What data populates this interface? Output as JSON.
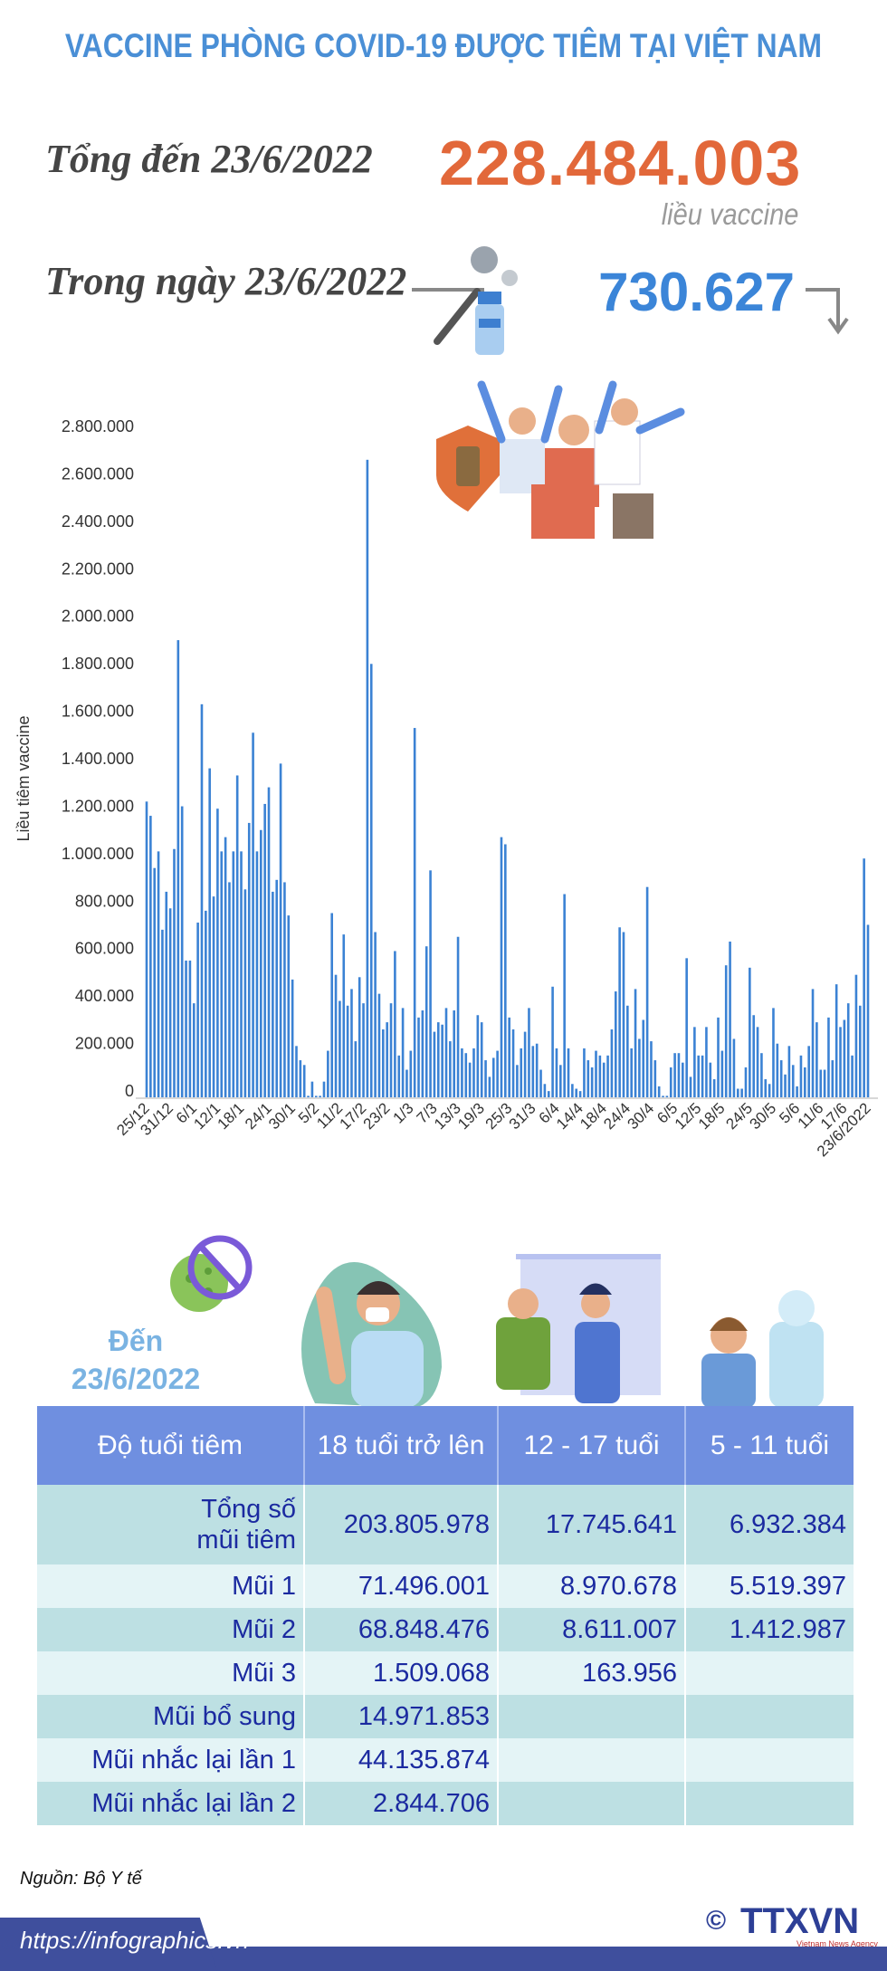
{
  "title": "VACCINE PHÒNG COVID-19 ĐƯỢC TIÊM TẠI VIỆT NAM",
  "summary": {
    "total_label": "Tổng đến 23/6/2022",
    "total_value": "228.484.003",
    "total_unit": "liều vaccine",
    "day_label": "Trong ngày 23/6/2022",
    "day_value": "730.627",
    "day_trend": "down",
    "colors": {
      "title": "#4a8fd6",
      "total": "#e2683a",
      "day": "#3b85d8"
    }
  },
  "chart_data": {
    "type": "bar",
    "title": "",
    "xlabel": "",
    "ylabel": "Liều tiêm vaccine",
    "ylim": [
      0,
      2800000
    ],
    "grid": false,
    "color": "#3b82d4",
    "yticks": [
      "0",
      "200.000",
      "400.000",
      "600.000",
      "800.000",
      "1.000.000",
      "1.200.000",
      "1.400.000",
      "1.600.000",
      "1.800.000",
      "2.000.000",
      "2.200.000",
      "2.400.000",
      "2.600.000",
      "2.800.000"
    ],
    "ytick_values": [
      0,
      200000,
      400000,
      600000,
      800000,
      1000000,
      1200000,
      1400000,
      1600000,
      1800000,
      2000000,
      2200000,
      2400000,
      2600000,
      2800000
    ],
    "xtick_labels": [
      "25/12",
      "31/12",
      "6/1",
      "12/1",
      "18/1",
      "24/1",
      "30/1",
      "5/2",
      "11/2",
      "17/2",
      "23/2",
      "1/3",
      "7/3",
      "13/3",
      "19/3",
      "25/3",
      "31/3",
      "6/4",
      "14/4",
      "18/4",
      "24/4",
      "30/4",
      "6/5",
      "12/5",
      "18/5",
      "24/5",
      "30/5",
      "5/6",
      "11/6",
      "17/6",
      "23/6/2022"
    ],
    "values": [
      1250000,
      1190000,
      970000,
      1040000,
      710000,
      870000,
      800000,
      1050000,
      1930000,
      1230000,
      580000,
      580000,
      400000,
      740000,
      1660000,
      790000,
      1390000,
      850000,
      1220000,
      1040000,
      1100000,
      910000,
      1040000,
      1360000,
      1040000,
      880000,
      1160000,
      1540000,
      1040000,
      1130000,
      1240000,
      1310000,
      870000,
      920000,
      1410000,
      910000,
      770000,
      500000,
      220000,
      160000,
      140000,
      10000,
      70000,
      10000,
      10000,
      70000,
      200000,
      780000,
      520000,
      410000,
      690000,
      390000,
      460000,
      240000,
      510000,
      400000,
      2690000,
      1830000,
      700000,
      440000,
      290000,
      320000,
      400000,
      620000,
      180000,
      380000,
      120000,
      200000,
      1560000,
      340000,
      370000,
      640000,
      960000,
      280000,
      320000,
      310000,
      380000,
      240000,
      370000,
      680000,
      210000,
      190000,
      150000,
      210000,
      350000,
      320000,
      160000,
      90000,
      170000,
      200000,
      1100000,
      1070000,
      340000,
      290000,
      140000,
      210000,
      280000,
      380000,
      220000,
      230000,
      120000,
      60000,
      30000,
      470000,
      210000,
      140000,
      860000,
      210000,
      60000,
      40000,
      30000,
      210000,
      160000,
      130000,
      200000,
      180000,
      150000,
      180000,
      290000,
      450000,
      720000,
      700000,
      390000,
      210000,
      460000,
      250000,
      330000,
      890000,
      240000,
      160000,
      50000,
      10000,
      10000,
      130000,
      190000,
      190000,
      150000,
      590000,
      90000,
      300000,
      180000,
      180000,
      300000,
      150000,
      80000,
      340000,
      200000,
      560000,
      660000,
      250000,
      40000,
      40000,
      130000,
      550000,
      350000,
      300000,
      190000,
      80000,
      60000,
      380000,
      230000,
      160000,
      100000,
      220000,
      140000,
      50000,
      180000,
      130000,
      220000,
      460000,
      320000,
      120000,
      120000,
      340000,
      160000,
      480000,
      300000,
      330000,
      400000,
      180000,
      520000,
      390000,
      1010000,
      730627
    ]
  },
  "table_section": {
    "date_label_line1": "Đến",
    "date_label_line2": "23/6/2022",
    "headers": [
      "Độ tuổi tiêm",
      "18 tuổi trở lên",
      "12 - 17 tuổi",
      "5 - 11 tuổi"
    ],
    "rows": [
      {
        "label": "Tổng số mũi tiêm",
        "values": [
          "203.805.978",
          "17.745.641",
          "6.932.384"
        ]
      },
      {
        "label": "Mũi 1",
        "values": [
          "71.496.001",
          "8.970.678",
          "5.519.397"
        ]
      },
      {
        "label": "Mũi 2",
        "values": [
          "68.848.476",
          "8.611.007",
          "1.412.987"
        ]
      },
      {
        "label": "Mũi 3",
        "values": [
          "1.509.068",
          "163.956",
          ""
        ]
      },
      {
        "label": "Mũi bổ sung",
        "values": [
          "14.971.853",
          "",
          ""
        ]
      },
      {
        "label": "Mũi nhắc lại lần 1",
        "values": [
          "44.135.874",
          "",
          ""
        ]
      },
      {
        "label": "Mũi nhắc lại lần 2",
        "values": [
          "2.844.706",
          "",
          ""
        ]
      }
    ],
    "colors": {
      "header": "#6f8fe0",
      "row_dark": "#bde0e3",
      "row_light": "#e4f4f6",
      "text": "#1b2aa0"
    }
  },
  "footer": {
    "source": "Nguồn: Bộ Y tế",
    "url": "https://infographics.vn",
    "logo_text": "TTXVN",
    "logo_subtext": "Vietnam News Agency",
    "copyright": "©"
  }
}
